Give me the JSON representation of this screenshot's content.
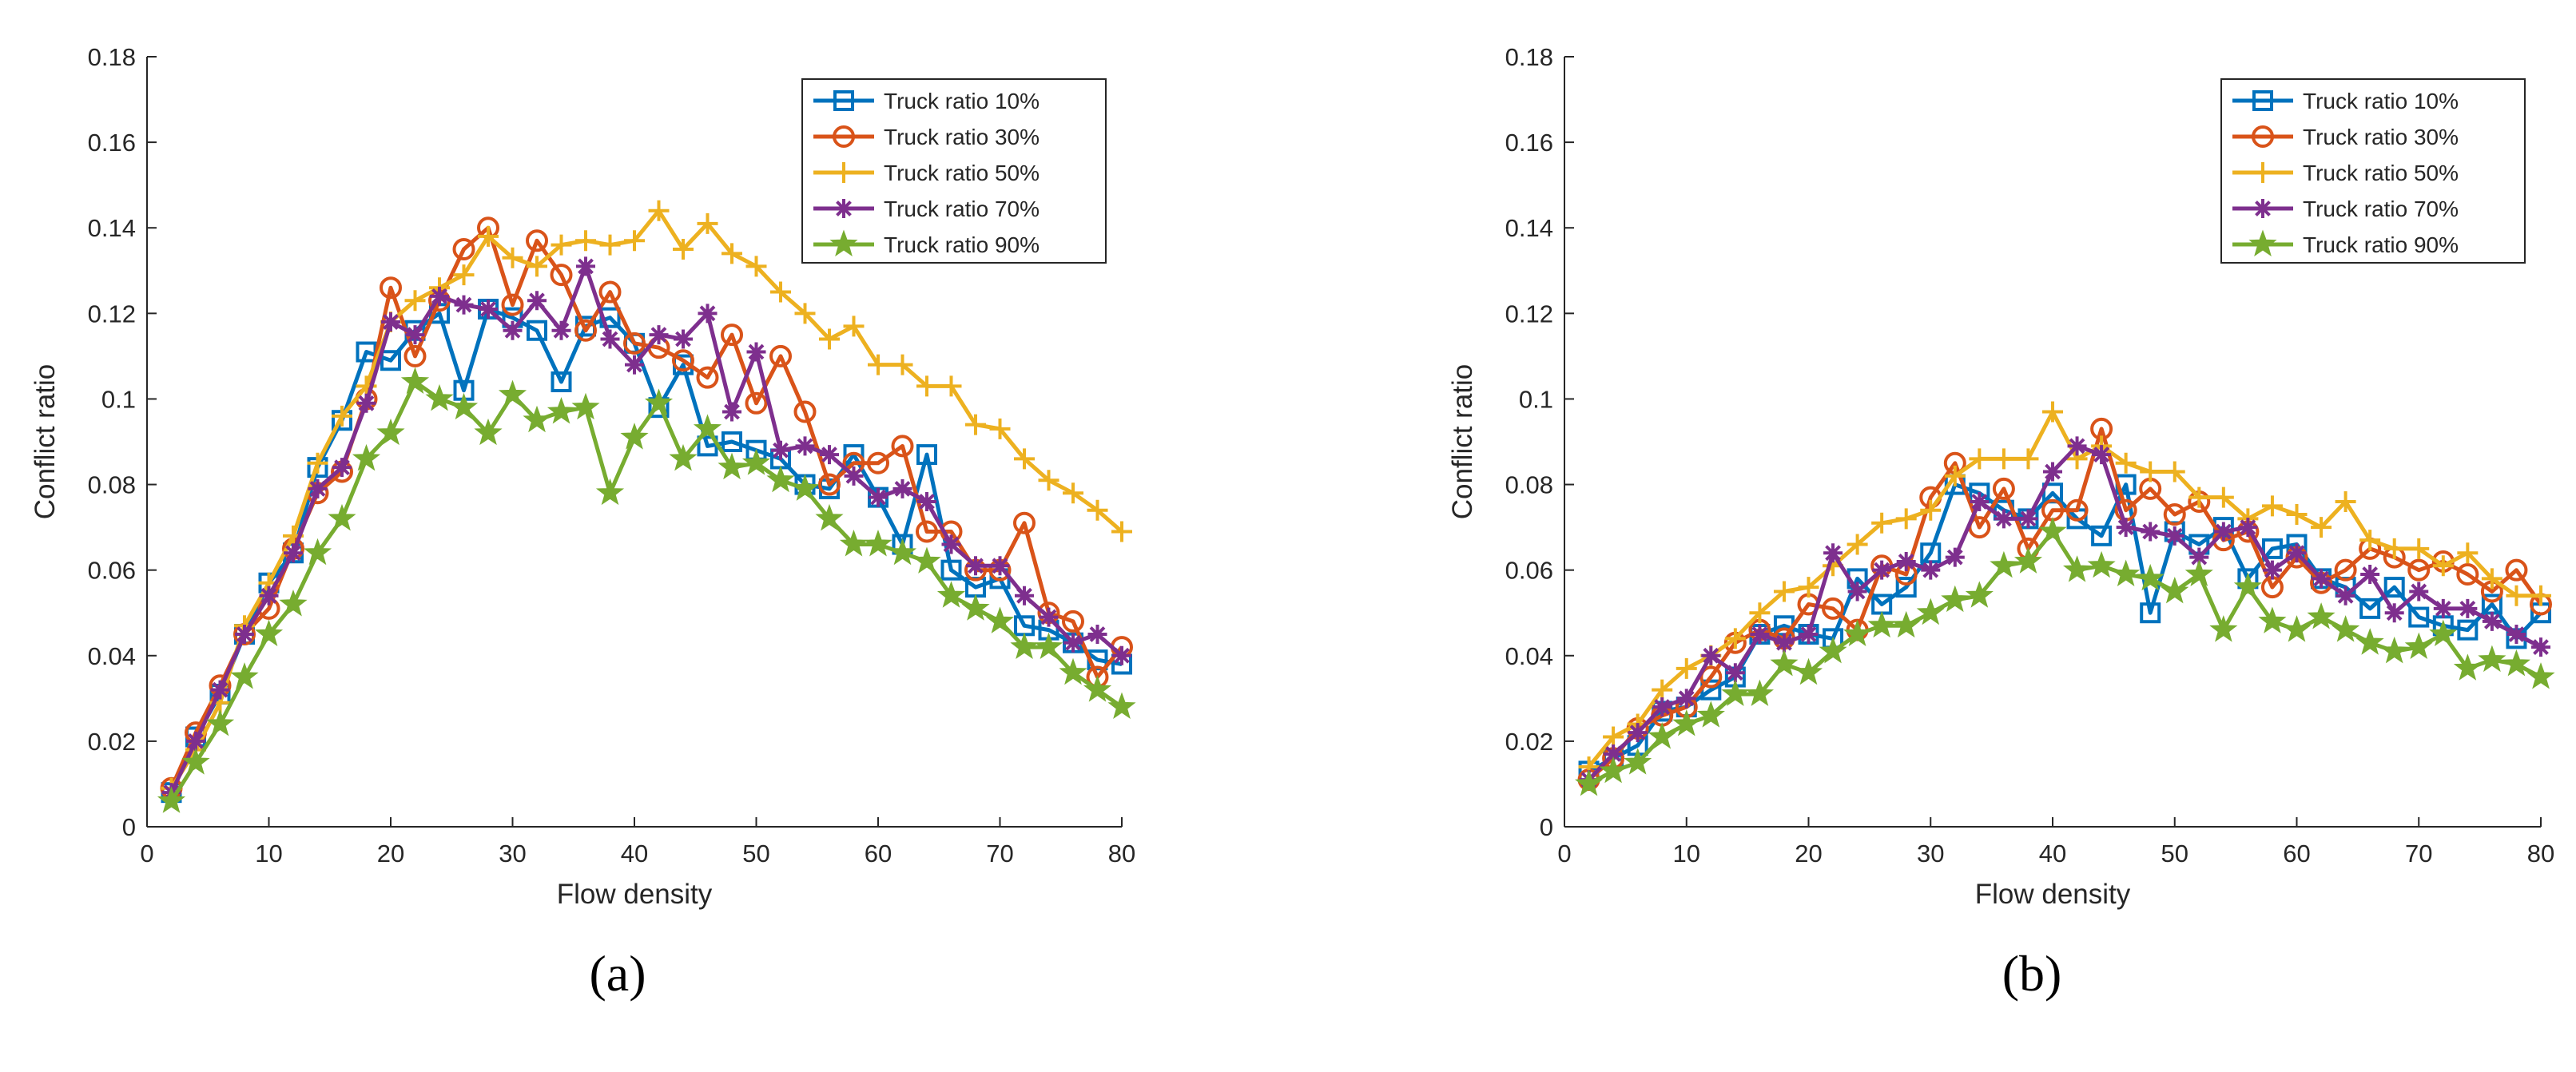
{
  "colors": {
    "series": [
      "#0072BD",
      "#D95319",
      "#EDB120",
      "#7E2F8E",
      "#77AC30"
    ],
    "axis": "#262626",
    "background": "#ffffff"
  },
  "chart_data": [
    {
      "type": "line",
      "panel_label": "(a)",
      "title": "",
      "xlabel": "Flow density",
      "ylabel": "Conflict ratio",
      "xlim": [
        0,
        80
      ],
      "ylim": [
        0,
        0.18
      ],
      "xticks": [
        0,
        10,
        20,
        30,
        40,
        50,
        60,
        70,
        80
      ],
      "yticks": [
        0,
        0.02,
        0.04,
        0.06,
        0.08,
        0.1,
        0.12,
        0.14,
        0.16,
        0.18
      ],
      "xtick_labels": [
        "0",
        "10",
        "20",
        "30",
        "40",
        "50",
        "60",
        "70",
        "80"
      ],
      "ytick_labels": [
        "0",
        "0.02",
        "0.04",
        "0.06",
        "0.08",
        "0.1",
        "0.12",
        "0.14",
        "0.16",
        "0.18"
      ],
      "grid": false,
      "legend_position": "top-right",
      "x": [
        2,
        4,
        6,
        8,
        10,
        12,
        14,
        16,
        18,
        20,
        22,
        24,
        26,
        28,
        30,
        32,
        34,
        36,
        38,
        40,
        42,
        44,
        46,
        48,
        50,
        52,
        54,
        56,
        58,
        60,
        62,
        64,
        66,
        68,
        70,
        72,
        74,
        76,
        78,
        80
      ],
      "series": [
        {
          "name": "Truck ratio 10%",
          "marker": "square",
          "values": [
            0.008,
            0.021,
            0.031,
            0.045,
            0.057,
            0.064,
            0.084,
            0.095,
            0.111,
            0.109,
            0.116,
            0.12,
            0.102,
            0.121,
            0.119,
            0.116,
            0.104,
            0.117,
            0.119,
            0.113,
            0.098,
            0.108,
            0.089,
            0.09,
            0.088,
            0.086,
            0.08,
            0.079,
            0.087,
            0.077,
            0.066,
            0.087,
            0.06,
            0.056,
            0.058,
            0.047,
            0.046,
            0.043,
            0.039,
            0.038
          ]
        },
        {
          "name": "Truck ratio 30%",
          "marker": "circle",
          "values": [
            0.009,
            0.022,
            0.033,
            0.045,
            0.051,
            0.065,
            0.078,
            0.083,
            0.1,
            0.126,
            0.11,
            0.123,
            0.135,
            0.14,
            0.122,
            0.137,
            0.129,
            0.116,
            0.125,
            0.113,
            0.112,
            0.109,
            0.105,
            0.115,
            0.099,
            0.11,
            0.097,
            0.08,
            0.085,
            0.085,
            0.089,
            0.069,
            0.069,
            0.06,
            0.06,
            0.071,
            0.05,
            0.048,
            0.035,
            0.042
          ]
        },
        {
          "name": "Truck ratio 50%",
          "marker": "plus",
          "values": [
            0.009,
            0.018,
            0.029,
            0.047,
            0.057,
            0.068,
            0.085,
            0.096,
            0.103,
            0.118,
            0.123,
            0.126,
            0.129,
            0.138,
            0.133,
            0.131,
            0.136,
            0.137,
            0.136,
            0.137,
            0.144,
            0.135,
            0.141,
            0.134,
            0.131,
            0.125,
            0.12,
            0.114,
            0.117,
            0.108,
            0.108,
            0.103,
            0.103,
            0.094,
            0.093,
            0.086,
            0.081,
            0.078,
            0.074,
            0.069
          ]
        },
        {
          "name": "Truck ratio 70%",
          "marker": "asterisk",
          "values": [
            0.008,
            0.02,
            0.032,
            0.045,
            0.054,
            0.064,
            0.079,
            0.084,
            0.099,
            0.118,
            0.115,
            0.124,
            0.122,
            0.121,
            0.116,
            0.123,
            0.116,
            0.131,
            0.114,
            0.108,
            0.115,
            0.114,
            0.12,
            0.097,
            0.111,
            0.088,
            0.089,
            0.087,
            0.082,
            0.077,
            0.079,
            0.076,
            0.066,
            0.061,
            0.061,
            0.054,
            0.049,
            0.043,
            0.045,
            0.04
          ]
        },
        {
          "name": "Truck ratio 90%",
          "marker": "pentagram",
          "values": [
            0.006,
            0.015,
            0.024,
            0.035,
            0.045,
            0.052,
            0.064,
            0.072,
            0.086,
            0.092,
            0.104,
            0.1,
            0.098,
            0.092,
            0.101,
            0.095,
            0.097,
            0.098,
            0.078,
            0.091,
            0.099,
            0.086,
            0.093,
            0.084,
            0.085,
            0.081,
            0.079,
            0.072,
            0.066,
            0.066,
            0.064,
            0.062,
            0.054,
            0.051,
            0.048,
            0.042,
            0.042,
            0.036,
            0.032,
            0.028
          ]
        }
      ]
    },
    {
      "type": "line",
      "panel_label": "(b)",
      "title": "",
      "xlabel": "Flow density",
      "ylabel": "Conflict ratio",
      "xlim": [
        0,
        80
      ],
      "ylim": [
        0,
        0.18
      ],
      "xticks": [
        0,
        10,
        20,
        30,
        40,
        50,
        60,
        70,
        80
      ],
      "yticks": [
        0,
        0.02,
        0.04,
        0.06,
        0.08,
        0.1,
        0.12,
        0.14,
        0.16,
        0.18
      ],
      "xtick_labels": [
        "0",
        "10",
        "20",
        "30",
        "40",
        "50",
        "60",
        "70",
        "80"
      ],
      "ytick_labels": [
        "0",
        "0.02",
        "0.04",
        "0.06",
        "0.08",
        "0.1",
        "0.12",
        "0.14",
        "0.16",
        "0.18"
      ],
      "grid": false,
      "legend_position": "top-right",
      "x": [
        2,
        4,
        6,
        8,
        10,
        12,
        14,
        16,
        18,
        20,
        22,
        24,
        26,
        28,
        30,
        32,
        34,
        36,
        38,
        40,
        42,
        44,
        46,
        48,
        50,
        52,
        54,
        56,
        58,
        60,
        62,
        64,
        66,
        68,
        70,
        72,
        74,
        76,
        78,
        80
      ],
      "series": [
        {
          "name": "Truck ratio 10%",
          "marker": "square",
          "values": [
            0.013,
            0.016,
            0.019,
            0.027,
            0.028,
            0.032,
            0.035,
            0.045,
            0.047,
            0.045,
            0.044,
            0.058,
            0.052,
            0.056,
            0.064,
            0.08,
            0.078,
            0.074,
            0.072,
            0.078,
            0.072,
            0.068,
            0.08,
            0.05,
            0.069,
            0.066,
            0.07,
            0.058,
            0.065,
            0.066,
            0.058,
            0.056,
            0.051,
            0.056,
            0.049,
            0.047,
            0.046,
            0.052,
            0.044,
            0.05
          ]
        },
        {
          "name": "Truck ratio 30%",
          "marker": "circle",
          "values": [
            0.011,
            0.016,
            0.023,
            0.026,
            0.028,
            0.035,
            0.043,
            0.046,
            0.044,
            0.052,
            0.051,
            0.046,
            0.061,
            0.059,
            0.077,
            0.085,
            0.07,
            0.079,
            0.065,
            0.074,
            0.074,
            0.093,
            0.074,
            0.079,
            0.073,
            0.076,
            0.067,
            0.069,
            0.056,
            0.063,
            0.057,
            0.06,
            0.065,
            0.063,
            0.06,
            0.062,
            0.059,
            0.055,
            0.06,
            0.052
          ]
        },
        {
          "name": "Truck ratio 50%",
          "marker": "plus",
          "values": [
            0.014,
            0.021,
            0.024,
            0.032,
            0.037,
            0.04,
            0.044,
            0.05,
            0.055,
            0.056,
            0.061,
            0.066,
            0.071,
            0.072,
            0.074,
            0.082,
            0.086,
            0.086,
            0.086,
            0.097,
            0.086,
            0.089,
            0.085,
            0.083,
            0.083,
            0.077,
            0.077,
            0.072,
            0.075,
            0.073,
            0.07,
            0.076,
            0.067,
            0.065,
            0.065,
            0.061,
            0.064,
            0.058,
            0.054,
            0.054
          ]
        },
        {
          "name": "Truck ratio 70%",
          "marker": "asterisk",
          "values": [
            0.011,
            0.017,
            0.022,
            0.028,
            0.03,
            0.04,
            0.036,
            0.045,
            0.043,
            0.045,
            0.064,
            0.055,
            0.06,
            0.062,
            0.06,
            0.063,
            0.076,
            0.072,
            0.072,
            0.083,
            0.089,
            0.087,
            0.07,
            0.069,
            0.068,
            0.063,
            0.069,
            0.07,
            0.06,
            0.064,
            0.058,
            0.054,
            0.059,
            0.05,
            0.055,
            0.051,
            0.051,
            0.048,
            0.045,
            0.042
          ]
        },
        {
          "name": "Truck ratio 90%",
          "marker": "pentagram",
          "values": [
            0.01,
            0.013,
            0.015,
            0.021,
            0.024,
            0.026,
            0.031,
            0.031,
            0.038,
            0.036,
            0.041,
            0.045,
            0.047,
            0.047,
            0.05,
            0.053,
            0.054,
            0.061,
            0.062,
            0.069,
            0.06,
            0.061,
            0.059,
            0.058,
            0.055,
            0.059,
            0.046,
            0.056,
            0.048,
            0.046,
            0.049,
            0.046,
            0.043,
            0.041,
            0.042,
            0.045,
            0.037,
            0.039,
            0.038,
            0.035
          ]
        }
      ]
    }
  ]
}
